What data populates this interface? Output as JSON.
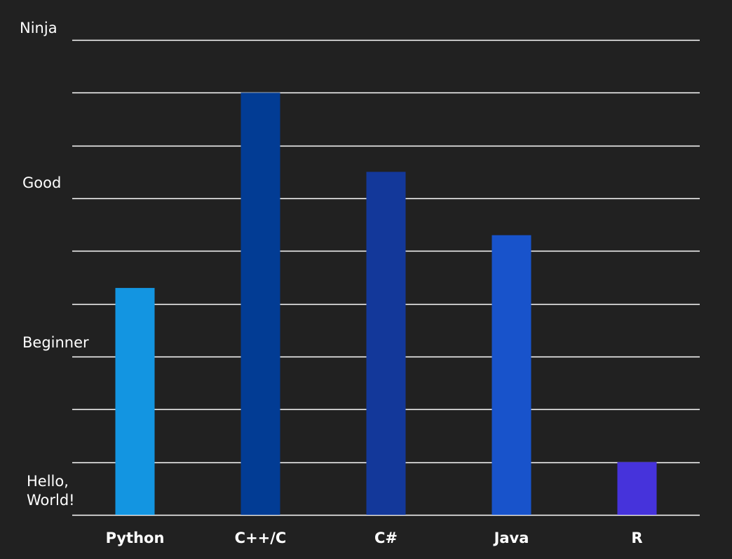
{
  "chart_data": {
    "type": "bar",
    "categories": [
      "Python",
      "C++/C",
      "C#",
      "Java",
      "R"
    ],
    "values": [
      4.3,
      8.0,
      6.5,
      5.3,
      1.0
    ],
    "ylim": [
      0,
      9
    ],
    "y_tick_labels": [
      {
        "value": 0,
        "text": "Hello,\nWorld!"
      },
      {
        "value": 3,
        "text": "Beginner"
      },
      {
        "value": 6,
        "text": "Good"
      },
      {
        "value": 9,
        "text": "Ninja"
      }
    ],
    "gridlines": [
      0,
      1,
      2,
      3,
      4,
      5,
      6,
      7,
      8,
      9
    ],
    "grid": true,
    "bar_colors": [
      "#1395e1",
      "#023c94",
      "#13389a",
      "#1853cb",
      "#4633db"
    ],
    "gridline_color": "#ffffff",
    "background": "#212121"
  }
}
